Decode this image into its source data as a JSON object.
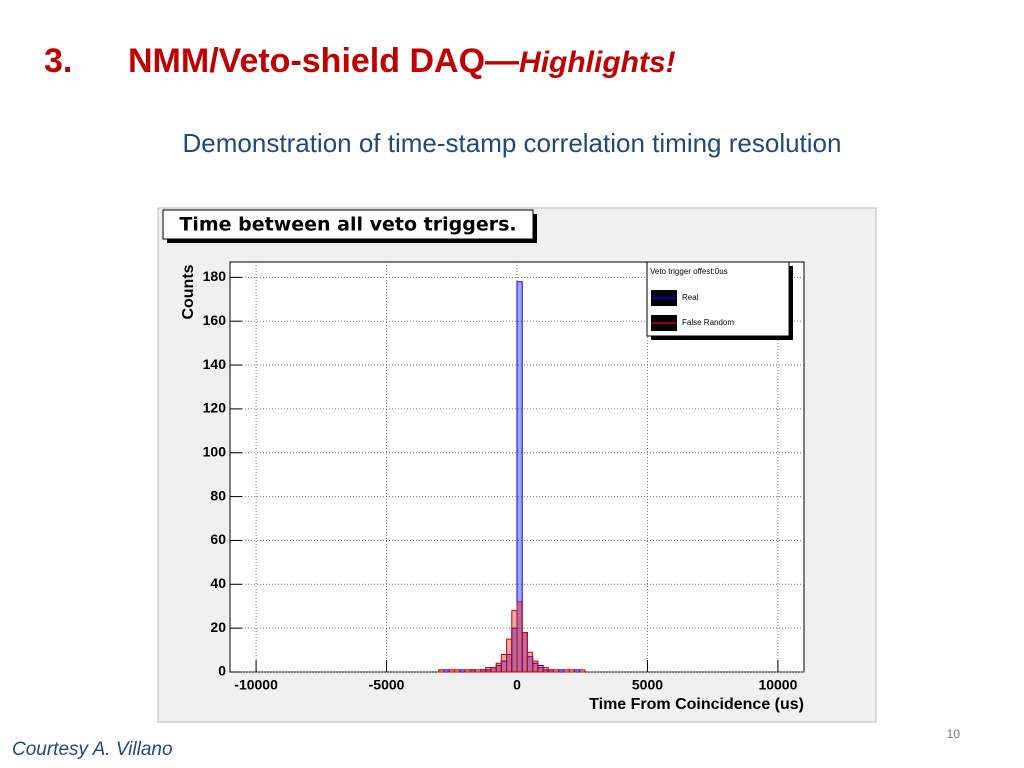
{
  "slide": {
    "number_label": "3.",
    "heading": "NMM/Veto-shield DAQ—",
    "heading_emphasis": "Highlights!",
    "subtitle": "Demonstration of time-stamp correlation timing resolution",
    "credit": "Courtesy A. Villano",
    "page_number": "10"
  },
  "chart_data": {
    "type": "histogram",
    "title": "Time between all veto triggers.",
    "x_label": "Time From Coincidence (us)",
    "y_label": "Counts",
    "legend_title": "Veto trigger offest:0us",
    "legend_position": "upper right",
    "bins": [
      -3000,
      -2800,
      -2600,
      -2400,
      -2200,
      -2000,
      -1800,
      -1600,
      -1400,
      -1200,
      -1000,
      -800,
      -600,
      -400,
      -200,
      0,
      200,
      400,
      600,
      800,
      1000,
      1200,
      1400,
      1600,
      1800,
      2000,
      2200,
      2400,
      2600,
      2800,
      3000
    ],
    "series": [
      {
        "name": "Real",
        "color": "#0000ff",
        "values": [
          0,
          1,
          0,
          0,
          1,
          0,
          1,
          0,
          1,
          1,
          2,
          3,
          5,
          8,
          20,
          178,
          18,
          7,
          4,
          3,
          1,
          1,
          0,
          1,
          0,
          0,
          1,
          0,
          0,
          0
        ]
      },
      {
        "name": "False Random",
        "color": "#cc0000",
        "values": [
          1,
          0,
          1,
          1,
          0,
          1,
          1,
          1,
          1,
          2,
          2,
          4,
          8,
          15,
          28,
          32,
          18,
          9,
          5,
          2,
          2,
          1,
          1,
          0,
          1,
          1,
          0,
          1,
          0,
          0
        ]
      }
    ],
    "xlim": [
      -11000,
      11000
    ],
    "ylim": [
      0,
      187
    ],
    "xticks": [
      -10000,
      -5000,
      0,
      5000,
      10000
    ],
    "yticks": [
      0,
      20,
      40,
      60,
      80,
      100,
      120,
      140,
      160,
      180
    ],
    "grid": true
  }
}
